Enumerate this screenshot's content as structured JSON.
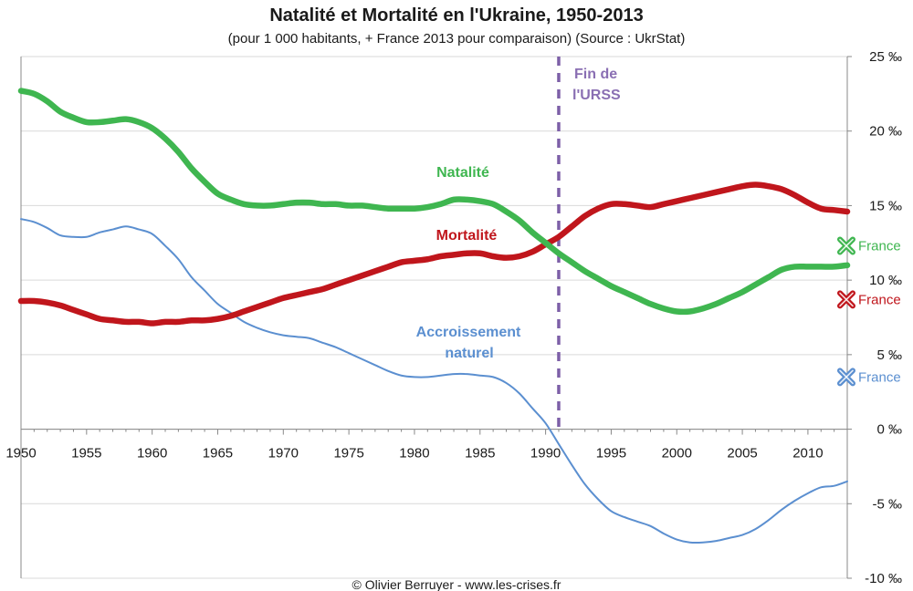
{
  "chart_data": {
    "type": "line",
    "title": "Natalité et Mortalité en l'Ukraine, 1950-2013",
    "subtitle": "(pour 1 000 habitants, + France 2013 pour comparaison) (Source : UkrStat)",
    "xlim": [
      1950,
      2013
    ],
    "ylim": [
      -10,
      25
    ],
    "x_ticks": [
      "1950",
      "1955",
      "1960",
      "1965",
      "1970",
      "1975",
      "1980",
      "1985",
      "1990",
      "1995",
      "2000",
      "2005",
      "2010"
    ],
    "y_ticks": [
      "25 ‰",
      "20 ‰",
      "15 ‰",
      "10 ‰",
      "5 ‰",
      "0 ‰",
      "-5 ‰",
      "-10 ‰"
    ],
    "grid": true,
    "series": [
      {
        "name": "Natalité",
        "color": "#3fb650",
        "x": [
          1950,
          1951,
          1952,
          1953,
          1954,
          1955,
          1956,
          1957,
          1958,
          1959,
          1960,
          1961,
          1962,
          1963,
          1964,
          1965,
          1966,
          1967,
          1968,
          1969,
          1970,
          1971,
          1972,
          1973,
          1974,
          1975,
          1976,
          1977,
          1978,
          1979,
          1980,
          1981,
          1982,
          1983,
          1984,
          1985,
          1986,
          1987,
          1988,
          1989,
          1990,
          1991,
          1992,
          1993,
          1994,
          1995,
          1996,
          1997,
          1998,
          1999,
          2000,
          2001,
          2002,
          2003,
          2004,
          2005,
          2006,
          2007,
          2008,
          2009,
          2010,
          2011,
          2012,
          2013
        ],
        "values": [
          22.7,
          22.5,
          22.0,
          21.3,
          20.9,
          20.6,
          20.6,
          20.7,
          20.8,
          20.6,
          20.2,
          19.5,
          18.6,
          17.5,
          16.6,
          15.8,
          15.4,
          15.1,
          15.0,
          15.0,
          15.1,
          15.2,
          15.2,
          15.1,
          15.1,
          15.0,
          15.0,
          14.9,
          14.8,
          14.8,
          14.8,
          14.9,
          15.1,
          15.4,
          15.4,
          15.3,
          15.1,
          14.6,
          14.0,
          13.2,
          12.5,
          11.8,
          11.2,
          10.6,
          10.1,
          9.6,
          9.2,
          8.8,
          8.4,
          8.1,
          7.9,
          7.9,
          8.1,
          8.4,
          8.8,
          9.2,
          9.7,
          10.2,
          10.7,
          10.9,
          10.9,
          10.9,
          10.9,
          11.0
        ]
      },
      {
        "name": "Mortalité",
        "color": "#c0161c",
        "x": [
          1950,
          1951,
          1952,
          1953,
          1954,
          1955,
          1956,
          1957,
          1958,
          1959,
          1960,
          1961,
          1962,
          1963,
          1964,
          1965,
          1966,
          1967,
          1968,
          1969,
          1970,
          1971,
          1972,
          1973,
          1974,
          1975,
          1976,
          1977,
          1978,
          1979,
          1980,
          1981,
          1982,
          1983,
          1984,
          1985,
          1986,
          1987,
          1988,
          1989,
          1990,
          1991,
          1992,
          1993,
          1994,
          1995,
          1996,
          1997,
          1998,
          1999,
          2000,
          2001,
          2002,
          2003,
          2004,
          2005,
          2006,
          2007,
          2008,
          2009,
          2010,
          2011,
          2012,
          2013
        ],
        "values": [
          8.6,
          8.6,
          8.5,
          8.3,
          8.0,
          7.7,
          7.4,
          7.3,
          7.2,
          7.2,
          7.1,
          7.2,
          7.2,
          7.3,
          7.3,
          7.4,
          7.6,
          7.9,
          8.2,
          8.5,
          8.8,
          9.0,
          9.2,
          9.4,
          9.7,
          10.0,
          10.3,
          10.6,
          10.9,
          11.2,
          11.3,
          11.4,
          11.6,
          11.7,
          11.8,
          11.8,
          11.6,
          11.5,
          11.6,
          11.9,
          12.4,
          12.9,
          13.6,
          14.3,
          14.8,
          15.1,
          15.1,
          15.0,
          14.9,
          15.1,
          15.3,
          15.5,
          15.7,
          15.9,
          16.1,
          16.3,
          16.4,
          16.3,
          16.1,
          15.7,
          15.2,
          14.8,
          14.7,
          14.6
        ]
      },
      {
        "name": "Accroissement naturel",
        "color": "#5b8fd0",
        "x": [
          1950,
          1951,
          1952,
          1953,
          1954,
          1955,
          1956,
          1957,
          1958,
          1959,
          1960,
          1961,
          1962,
          1963,
          1964,
          1965,
          1966,
          1967,
          1968,
          1969,
          1970,
          1971,
          1972,
          1973,
          1974,
          1975,
          1976,
          1977,
          1978,
          1979,
          1980,
          1981,
          1982,
          1983,
          1984,
          1985,
          1986,
          1987,
          1988,
          1989,
          1990,
          1991,
          1992,
          1993,
          1994,
          1995,
          1996,
          1997,
          1998,
          1999,
          2000,
          2001,
          2002,
          2003,
          2004,
          2005,
          2006,
          2007,
          2008,
          2009,
          2010,
          2011,
          2012,
          2013
        ],
        "values": [
          14.1,
          13.9,
          13.5,
          13.0,
          12.9,
          12.9,
          13.2,
          13.4,
          13.6,
          13.4,
          13.1,
          12.3,
          11.4,
          10.2,
          9.3,
          8.4,
          7.8,
          7.2,
          6.8,
          6.5,
          6.3,
          6.2,
          6.1,
          5.8,
          5.5,
          5.1,
          4.7,
          4.3,
          3.9,
          3.6,
          3.5,
          3.5,
          3.6,
          3.7,
          3.7,
          3.6,
          3.5,
          3.1,
          2.4,
          1.4,
          0.4,
          -1.0,
          -2.4,
          -3.7,
          -4.7,
          -5.5,
          -5.9,
          -6.2,
          -6.5,
          -7.0,
          -7.4,
          -7.6,
          -7.6,
          -7.5,
          -7.3,
          -7.1,
          -6.7,
          -6.1,
          -5.4,
          -4.8,
          -4.3,
          -3.9,
          -3.8,
          -3.5
        ]
      }
    ],
    "annotations": {
      "natalite": "Natalité",
      "mortalite": "Mortalité",
      "accroissement_1": "Accroissement",
      "accroissement_2": "naturel",
      "fin_urss_1": "Fin de",
      "fin_urss_2": "l'URSS",
      "vline_year": 1991
    },
    "france_2013": [
      {
        "label": "France",
        "value": 12.3,
        "color": "#3fb650"
      },
      {
        "label": "France",
        "value": 8.7,
        "color": "#c0161c"
      },
      {
        "label": "France",
        "value": 3.5,
        "color": "#5b8fd0"
      }
    ],
    "credit": "© Olivier Berruyer - www.les-crises.fr"
  }
}
